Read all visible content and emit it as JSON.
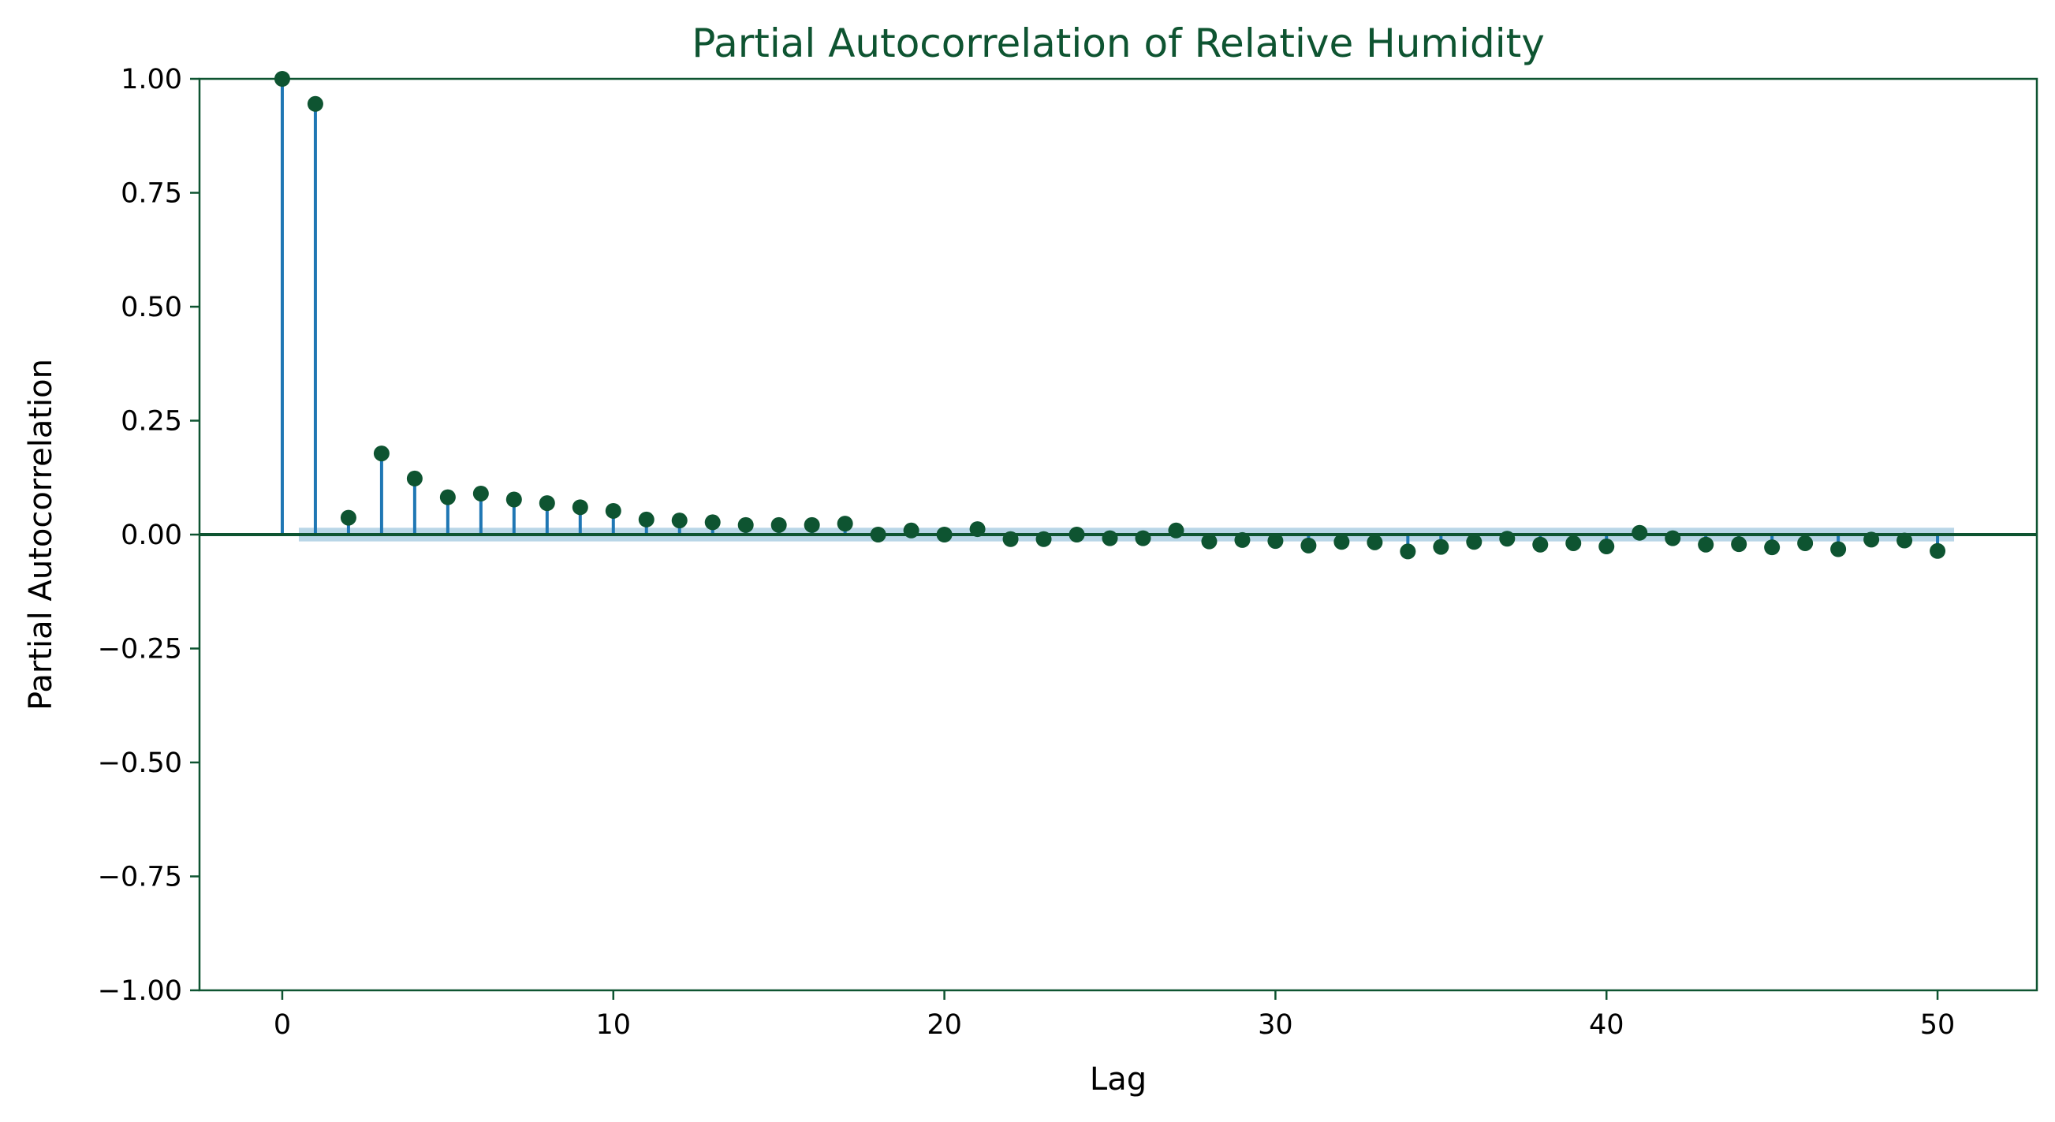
{
  "chart_data": {
    "type": "scatter",
    "subtype": "stem",
    "title": "Partial Autocorrelation of Relative Humidity",
    "xlabel": "Lag",
    "ylabel": "Partial Autocorrelation",
    "xlim": [
      -2.5,
      53
    ],
    "ylim": [
      -1.0,
      1.0
    ],
    "xticks": [
      0,
      10,
      20,
      30,
      40,
      50
    ],
    "xtick_labels": [
      "0",
      "10",
      "20",
      "30",
      "40",
      "50"
    ],
    "yticks": [
      1.0,
      0.75,
      0.5,
      0.25,
      0.0,
      -0.25,
      -0.5,
      -0.75,
      -1.0
    ],
    "ytick_labels": [
      "1.00",
      "0.75",
      "0.50",
      "0.25",
      "0.00",
      "−0.25",
      "−0.50",
      "−0.75",
      "−1.00"
    ],
    "grid": false,
    "confidence_band": [
      -0.015,
      0.015
    ],
    "confidence_band_x_range": [
      0.5,
      50.5
    ],
    "series": [
      {
        "x": [
          0,
          1,
          2,
          3,
          4,
          5,
          6,
          7,
          8,
          9,
          10,
          11,
          12,
          13,
          14,
          15,
          16,
          17,
          18,
          19,
          20,
          21,
          22,
          23,
          24,
          25,
          26,
          27,
          28,
          29,
          30,
          31,
          32,
          33,
          34,
          35,
          36,
          37,
          38,
          39,
          40,
          41,
          42,
          43,
          44,
          45,
          46,
          47,
          48,
          49,
          50
        ],
        "values": [
          1.0,
          0.945,
          0.037,
          0.178,
          0.123,
          0.082,
          0.09,
          0.077,
          0.069,
          0.06,
          0.052,
          0.033,
          0.031,
          0.027,
          0.021,
          0.021,
          0.021,
          0.024,
          0.0,
          0.009,
          0.0,
          0.012,
          -0.01,
          -0.01,
          0.0,
          -0.008,
          -0.008,
          0.009,
          -0.015,
          -0.012,
          -0.014,
          -0.024,
          -0.016,
          -0.017,
          -0.037,
          -0.027,
          -0.016,
          -0.009,
          -0.022,
          -0.019,
          -0.026,
          0.004,
          -0.008,
          -0.022,
          -0.021,
          -0.028,
          -0.019,
          -0.032,
          -0.011,
          -0.013,
          -0.036
        ]
      }
    ],
    "colors": {
      "stem": "#1f77b4",
      "marker": "#0e5431",
      "title": "#0e5431",
      "axes": "#0e5431",
      "band": "#adcfe3",
      "zero_line": "#0e5431"
    }
  }
}
